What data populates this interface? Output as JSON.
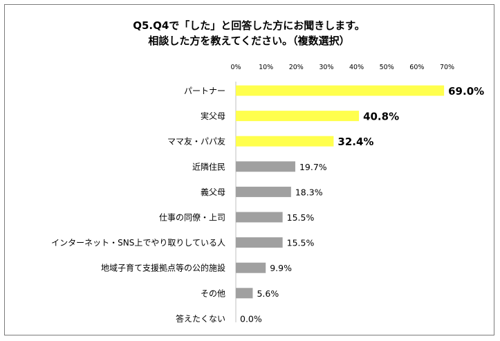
{
  "title": {
    "line1": "Q5.Q4で「した」と回答した方にお聞きします。",
    "line2": "相談した方を教えてください。（複数選択）"
  },
  "chart_data": {
    "type": "bar",
    "orientation": "horizontal",
    "categories": [
      "パートナー",
      "実父母",
      "ママ友・パパ友",
      "近隣住民",
      "義父母",
      "仕事の同僚・上司",
      "インターネット・SNS上でやり取りしている人",
      "地域子育て支援拠点等の公的施設",
      "その他",
      "答えたくない"
    ],
    "values": [
      69.0,
      40.8,
      32.4,
      19.7,
      18.3,
      15.5,
      15.5,
      9.9,
      5.6,
      0.0
    ],
    "value_labels": [
      "69.0%",
      "40.8%",
      "32.4%",
      "19.7%",
      "18.3%",
      "15.5%",
      "15.5%",
      "9.9%",
      "5.6%",
      "0.0%"
    ],
    "highlight_top": 3,
    "xlim": [
      0,
      70
    ],
    "xticks": [
      "0%",
      "10%",
      "20%",
      "30%",
      "40%",
      "50%",
      "60%",
      "70%"
    ],
    "xtick_values": [
      0,
      10,
      20,
      30,
      40,
      50,
      60,
      70
    ],
    "xaxis_position": "top",
    "grid": false,
    "colors": {
      "highlight": "#ffff4d",
      "normal": "#a0a0a0",
      "axis": "#bfbfbf",
      "text": "#000000"
    }
  }
}
